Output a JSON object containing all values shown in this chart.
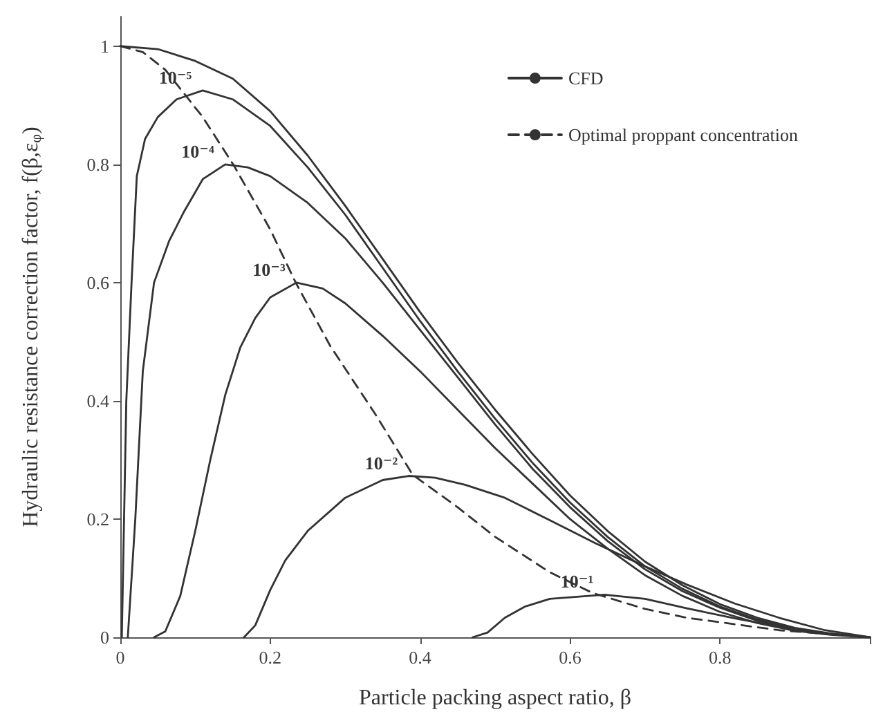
{
  "chart_data": {
    "type": "line",
    "xlabel": "Particle packing aspect ratio, β",
    "ylabel": "Hydraulic resistance correction factor, f(β,ε$_{φ}$)",
    "xlim": [
      0,
      1
    ],
    "ylim": [
      0,
      1.05
    ],
    "xticks": [
      0,
      0.2,
      0.4,
      0.6,
      0.8,
      {
        "value": 1,
        "label": null
      }
    ],
    "yticks": [
      0,
      0.2,
      0.4,
      0.6,
      0.8,
      1
    ],
    "grid": false,
    "legend": "top right",
    "marker": "none",
    "tick_labels": true,
    "annotations": [
      {
        "text": "10⁻⁵",
        "x": 0.11,
        "y": 0.925
      },
      {
        "text": "10⁻⁴",
        "x": 0.14,
        "y": 0.8
      },
      {
        "text": "10⁻³",
        "x": 0.235,
        "y": 0.6
      },
      {
        "text": "10⁻²",
        "x": 0.385,
        "y": 0.273
      },
      {
        "text": "10⁻¹",
        "x": 0.646,
        "y": 0.072
      }
    ],
    "series": [
      {
        "name": "CFD",
        "color": "#333333",
        "line_style": "solid",
        "x": [
          0,
          0.05,
          0.1,
          0.15,
          0.2,
          0.25,
          0.3,
          0.35,
          0.4,
          0.45,
          0.5,
          0.55,
          0.6,
          0.65,
          0.7,
          0.75,
          0.8,
          0.85,
          0.9,
          0.95,
          1
        ],
        "values": [
          1,
          0.995,
          0.975,
          0.945,
          0.89,
          0.815,
          0.73,
          0.64,
          0.55,
          0.465,
          0.385,
          0.31,
          0.24,
          0.18,
          0.128,
          0.088,
          0.056,
          0.033,
          0.016,
          0.006,
          0
        ]
      },
      {
        "color": "#333333",
        "line_style": "solid",
        "x": [
          0.002,
          0.008,
          0.015,
          0.022,
          0.033,
          0.05,
          0.075,
          0.11,
          0.15,
          0.2,
          0.25,
          0.3,
          0.35,
          0.4,
          0.45,
          0.5,
          0.55,
          0.6,
          0.65,
          0.7,
          0.75,
          0.8,
          0.85,
          0.9,
          0.95,
          1
        ],
        "values": [
          0,
          0.4,
          0.6,
          0.78,
          0.843,
          0.88,
          0.91,
          0.925,
          0.91,
          0.865,
          0.795,
          0.715,
          0.625,
          0.535,
          0.45,
          0.37,
          0.295,
          0.228,
          0.17,
          0.12,
          0.082,
          0.052,
          0.03,
          0.015,
          0.005,
          0
        ]
      },
      {
        "color": "#333333",
        "line_style": "solid",
        "x": [
          0.01,
          0.02,
          0.03,
          0.045,
          0.065,
          0.085,
          0.11,
          0.14,
          0.17,
          0.2,
          0.25,
          0.3,
          0.35,
          0.4,
          0.45,
          0.5,
          0.55,
          0.6,
          0.65,
          0.7,
          0.75,
          0.8,
          0.85,
          0.9,
          0.95,
          1
        ],
        "values": [
          0,
          0.2,
          0.45,
          0.6,
          0.67,
          0.72,
          0.775,
          0.8,
          0.795,
          0.78,
          0.735,
          0.675,
          0.6,
          0.52,
          0.44,
          0.36,
          0.285,
          0.22,
          0.163,
          0.115,
          0.078,
          0.05,
          0.028,
          0.014,
          0.005,
          0
        ]
      },
      {
        "color": "#333333",
        "line_style": "solid",
        "x": [
          0.045,
          0.06,
          0.08,
          0.1,
          0.12,
          0.14,
          0.16,
          0.18,
          0.2,
          0.235,
          0.27,
          0.3,
          0.35,
          0.4,
          0.45,
          0.5,
          0.55,
          0.6,
          0.65,
          0.7,
          0.75,
          0.8,
          0.85,
          0.9,
          0.95,
          1
        ],
        "values": [
          0,
          0.01,
          0.07,
          0.18,
          0.3,
          0.41,
          0.49,
          0.54,
          0.575,
          0.6,
          0.59,
          0.565,
          0.51,
          0.45,
          0.385,
          0.32,
          0.26,
          0.2,
          0.15,
          0.105,
          0.07,
          0.043,
          0.024,
          0.011,
          0.004,
          0
        ]
      },
      {
        "color": "#333333",
        "line_style": "solid",
        "x": [
          0.165,
          0.18,
          0.2,
          0.22,
          0.25,
          0.3,
          0.35,
          0.385,
          0.42,
          0.46,
          0.513,
          0.57,
          0.634,
          0.7,
          0.756,
          0.82,
          0.879,
          0.94,
          1
        ],
        "values": [
          0,
          0.02,
          0.08,
          0.13,
          0.18,
          0.236,
          0.266,
          0.273,
          0.27,
          0.258,
          0.236,
          0.2,
          0.159,
          0.12,
          0.089,
          0.057,
          0.033,
          0.012,
          0
        ]
      },
      {
        "color": "#333333",
        "line_style": "solid",
        "x": [
          0.47,
          0.49,
          0.513,
          0.54,
          0.573,
          0.646,
          0.7,
          0.756,
          0.82,
          0.879,
          0.94,
          1
        ],
        "values": [
          0,
          0.008,
          0.033,
          0.052,
          0.065,
          0.072,
          0.065,
          0.049,
          0.032,
          0.018,
          0.007,
          0
        ]
      },
      {
        "name": "Optimal proppant concentration",
        "color": "#333333",
        "line_style": "dashed",
        "x": [
          0,
          0.03,
          0.06,
          0.085,
          0.11,
          0.152,
          0.2,
          0.234,
          0.28,
          0.341,
          0.39,
          0.45,
          0.5,
          0.573,
          0.63,
          0.7,
          0.756,
          0.879,
          1
        ],
        "values": [
          1,
          0.99,
          0.96,
          0.92,
          0.88,
          0.797,
          0.69,
          0.6,
          0.493,
          0.376,
          0.275,
          0.22,
          0.17,
          0.11,
          0.075,
          0.048,
          0.033,
          0.012,
          0
        ]
      }
    ]
  }
}
